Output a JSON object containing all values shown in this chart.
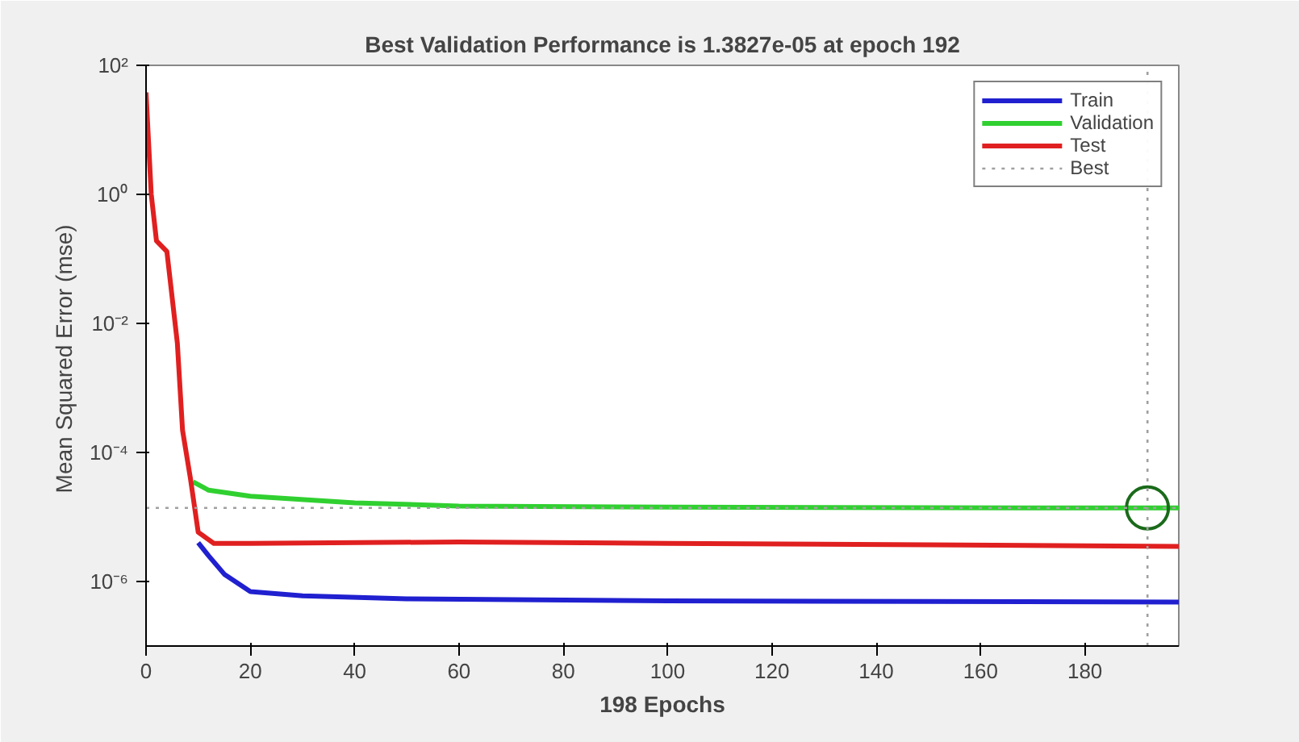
{
  "chart_data": {
    "type": "line",
    "title": "Best Validation Performance is 1.3827e-05 at epoch 192",
    "xlabel": "198 Epochs",
    "ylabel": "Mean Squared Error  (mse)",
    "log": "y",
    "grid": false,
    "legend": "top right",
    "line_style": "solid",
    "marker": "none",
    "xlim": [
      0,
      198
    ],
    "xticks": [
      0,
      20,
      40,
      60,
      80,
      100,
      120,
      140,
      160,
      180
    ],
    "ylim": [
      1e-07,
      100
    ],
    "yticks": [
      {
        "value": 100,
        "label": "10²"
      },
      {
        "value": 1,
        "label": "10⁰"
      },
      {
        "value": 0.01,
        "label": "10⁻²"
      },
      {
        "value": 0.0001,
        "label": "10⁻⁴"
      },
      {
        "value": 1e-06,
        "label": "10⁻⁶"
      }
    ],
    "series": [
      {
        "name": "Train",
        "color": "#2020d0",
        "x": [
          10,
          12,
          15,
          20,
          30,
          50,
          100,
          150,
          198
        ],
        "values": [
          4e-06,
          2.5e-06,
          1.3e-06,
          7e-07,
          6e-07,
          5.4e-07,
          5e-07,
          4.9e-07,
          4.8e-07
        ]
      },
      {
        "name": "Validation",
        "color": "#30d030",
        "x": [
          9,
          12,
          20,
          40,
          60,
          100,
          150,
          192,
          198
        ],
        "values": [
          3.5e-05,
          2.6e-05,
          2.1e-05,
          1.66e-05,
          1.48e-05,
          1.42e-05,
          1.39e-05,
          1.3827e-05,
          1.38e-05
        ]
      },
      {
        "name": "Test",
        "color": "#e02020",
        "x": [
          0,
          1,
          2,
          4,
          6,
          7,
          8.5,
          10,
          13,
          20,
          60,
          100,
          150,
          198
        ],
        "values": [
          38,
          1,
          0.19,
          0.13,
          0.005,
          0.00022,
          4e-05,
          5.8e-06,
          3.9e-06,
          3.9e-06,
          4.1e-06,
          3.9e-06,
          3.7e-06,
          3.5e-06
        ]
      },
      {
        "type": "scatter",
        "color": "#1a6a1a",
        "marker": "circle",
        "x": [
          192
        ],
        "values": [
          1.3827e-05
        ]
      }
    ],
    "ref_lines": [
      {
        "axis": "x",
        "value": 192,
        "label": "Best",
        "color": "#a0a0a0",
        "line_style": "dotted"
      },
      {
        "axis": "y",
        "value": 1.3827e-05,
        "color": "#a0a0a0",
        "line_style": "dotted"
      }
    ]
  }
}
